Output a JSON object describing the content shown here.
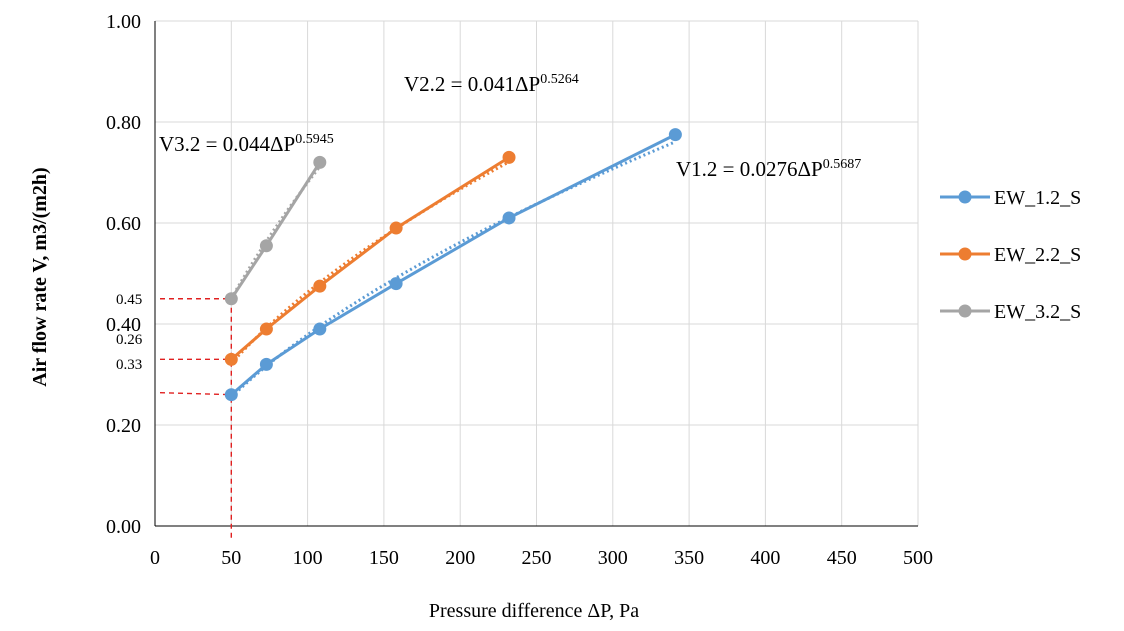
{
  "chart_data": {
    "type": "line",
    "title": "",
    "xlabel": "Pressure difference ΔP, Pa",
    "ylabel": "Air flow rate V, m3/(m2h)",
    "xlim": [
      0,
      500
    ],
    "ylim": [
      0,
      1.0
    ],
    "x_ticks": [
      "0",
      "50",
      "100",
      "150",
      "200",
      "250",
      "300",
      "350",
      "400",
      "450",
      "500"
    ],
    "y_ticks": [
      "0.00",
      "0.20",
      "0.40",
      "0.60",
      "0.80",
      "1.00"
    ],
    "grid": "vertical and horizontal",
    "legend_position": "right",
    "series": [
      {
        "name": "EW_1.2_S",
        "color": "#5B9BD5",
        "x": [
          50,
          73,
          108,
          158,
          232,
          341
        ],
        "y": [
          0.26,
          0.32,
          0.39,
          0.48,
          0.61,
          0.775
        ],
        "trend": {
          "a": 0.0276,
          "b": 0.5687
        },
        "equation": {
          "base": "V1.2 = 0.0276ΔP",
          "exponent": "0.5687"
        }
      },
      {
        "name": "EW_2.2_S",
        "color": "#ED7D31",
        "x": [
          50,
          73,
          108,
          158,
          232
        ],
        "y": [
          0.33,
          0.39,
          0.475,
          0.59,
          0.73
        ],
        "trend": {
          "a": 0.041,
          "b": 0.5264
        },
        "equation": {
          "base": "V2.2 = 0.041ΔP",
          "exponent": "0.5264"
        }
      },
      {
        "name": "EW_3.2_S",
        "color": "#A5A5A5",
        "x": [
          50,
          73,
          108
        ],
        "y": [
          0.45,
          0.555,
          0.72
        ],
        "trend": {
          "a": 0.044,
          "b": 0.5945
        },
        "equation": {
          "base": "V3.2 = 0.044ΔP",
          "exponent": "0.5945"
        }
      }
    ],
    "annotations": {
      "reference_x": 50,
      "reference_color": "#E02020",
      "values": [
        {
          "text": "0.45",
          "y": 0.45
        },
        {
          "text": "0.33",
          "y": 0.33
        },
        {
          "text": "0.26",
          "y": 0.26
        }
      ]
    }
  }
}
